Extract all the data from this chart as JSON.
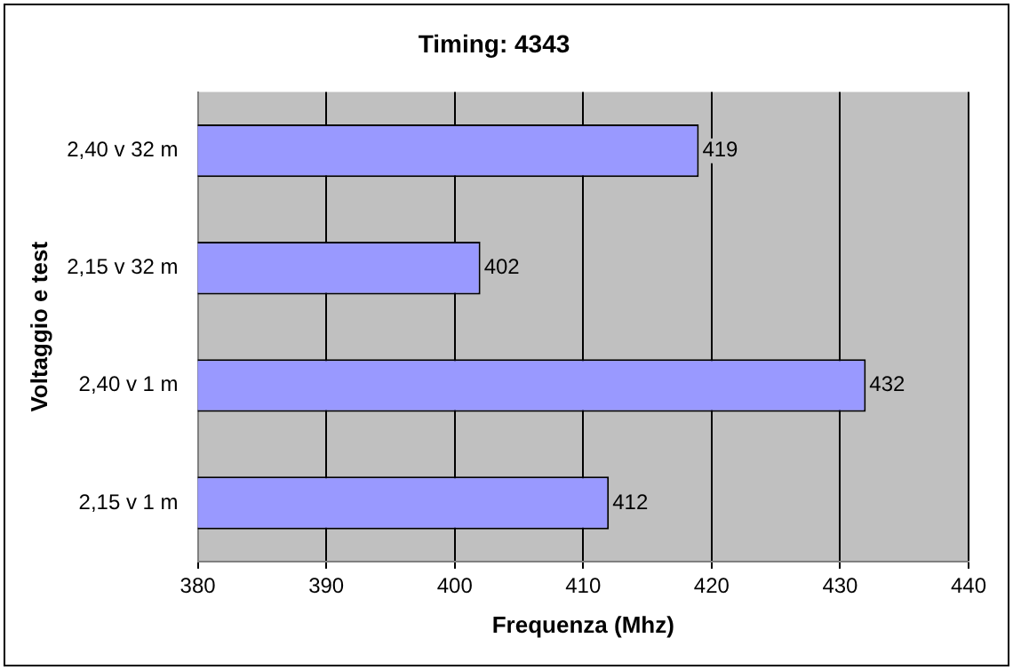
{
  "chart_data": {
    "type": "bar",
    "orientation": "horizontal",
    "title": "Timing: 4343",
    "xlabel": "Frequenza (Mhz)",
    "ylabel": "Voltaggio e test",
    "categories": [
      "2,40 v 32 m",
      "2,15 v 32 m",
      "2,40 v 1 m",
      "2,15 v 1 m"
    ],
    "values": [
      419,
      402,
      432,
      412
    ],
    "color": "#9999ff",
    "xlim": [
      380,
      440
    ],
    "xticks": [
      380,
      390,
      400,
      410,
      420,
      430,
      440
    ],
    "grid": "x",
    "legend": false,
    "data_labels": true
  }
}
